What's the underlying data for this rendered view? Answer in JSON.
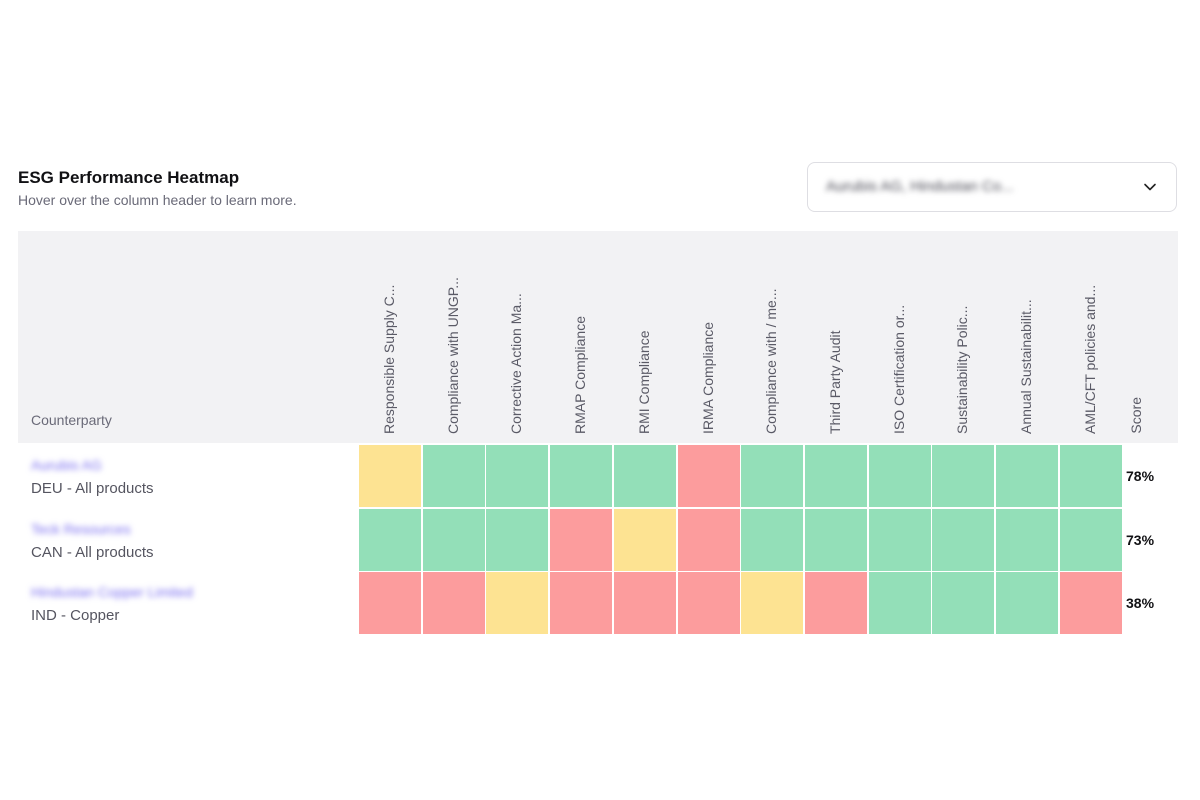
{
  "header": {
    "title": "ESG Performance Heatmap",
    "subtitle": "Hover over the column header to learn more."
  },
  "filter": {
    "selected": "Aurubis AG, Hindustan Co...",
    "icon": "chevron-down-icon"
  },
  "colors": {
    "pass": "#93dfb8",
    "partial": "#fde392",
    "fail": "#fc9c9d"
  },
  "chart_data": {
    "type": "heatmap",
    "row_header": "Counterparty",
    "score_header": "Score",
    "columns": [
      "Responsible Supply C...",
      "Compliance with UNGP...",
      "Corrective Action Ma...",
      "RMAP Compliance",
      "RMI Compliance",
      "IRMA Compliance",
      "Compliance with / me...",
      "Third Party Audit",
      "ISO Certification or...",
      "Sustainability Polic...",
      "Annual Sustainabilit...",
      "AML/CFT policies and..."
    ],
    "rows": [
      {
        "name": "Aurubis AG",
        "detail": "DEU - All products",
        "score": "78%",
        "cells": [
          "partial",
          "pass",
          "pass",
          "pass",
          "pass",
          "fail",
          "pass",
          "pass",
          "pass",
          "pass",
          "pass",
          "pass"
        ]
      },
      {
        "name": "Teck Resources",
        "detail": "CAN - All products",
        "score": "73%",
        "cells": [
          "pass",
          "pass",
          "pass",
          "fail",
          "partial",
          "fail",
          "pass",
          "pass",
          "pass",
          "pass",
          "pass",
          "pass"
        ]
      },
      {
        "name": "Hindustan Copper Limited",
        "detail": "IND - Copper",
        "score": "38%",
        "cells": [
          "fail",
          "fail",
          "partial",
          "fail",
          "fail",
          "fail",
          "partial",
          "fail",
          "pass",
          "pass",
          "pass",
          "fail"
        ]
      }
    ]
  }
}
